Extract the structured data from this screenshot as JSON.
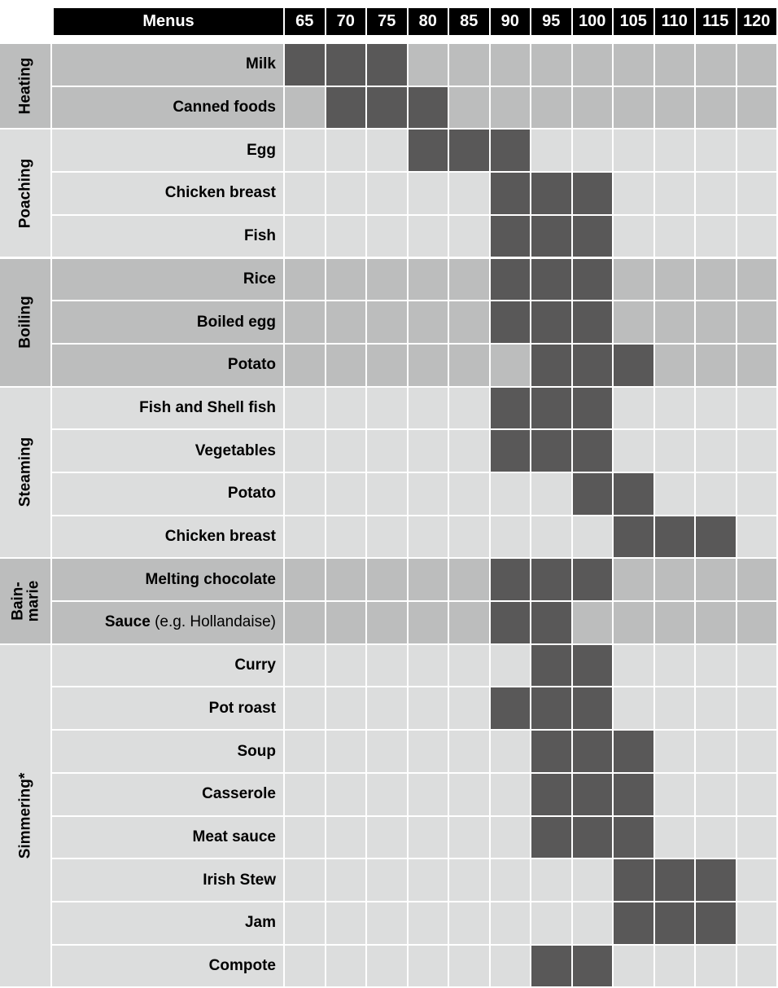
{
  "chart_data": {
    "type": "table",
    "menus_label": "Menus",
    "temperatures": [
      "65",
      "70",
      "75",
      "80",
      "85",
      "90",
      "95",
      "100",
      "105",
      "110",
      "115",
      "120"
    ],
    "groups": [
      {
        "name": "Heating",
        "rows": [
          {
            "menu": "Milk",
            "menu_note": "",
            "active": [
              65,
              70,
              75
            ]
          },
          {
            "menu": "Canned foods",
            "menu_note": "",
            "active": [
              70,
              75,
              80
            ]
          }
        ]
      },
      {
        "name": "Poaching",
        "rows": [
          {
            "menu": "Egg",
            "menu_note": "",
            "active": [
              80,
              85,
              90
            ]
          },
          {
            "menu": "Chicken breast",
            "menu_note": "",
            "active": [
              90,
              95,
              100
            ]
          },
          {
            "menu": "Fish",
            "menu_note": "",
            "active": [
              90,
              95,
              100
            ]
          }
        ]
      },
      {
        "name": "Boiling",
        "rows": [
          {
            "menu": "Rice",
            "menu_note": "",
            "active": [
              90,
              95,
              100
            ]
          },
          {
            "menu": "Boiled egg",
            "menu_note": "",
            "active": [
              90,
              95,
              100
            ]
          },
          {
            "menu": "Potato",
            "menu_note": "",
            "active": [
              95,
              100,
              105
            ]
          }
        ]
      },
      {
        "name": "Steaming",
        "rows": [
          {
            "menu": "Fish and Shell fish",
            "menu_note": "",
            "active": [
              90,
              95,
              100
            ]
          },
          {
            "menu": "Vegetables",
            "menu_note": "",
            "active": [
              90,
              95,
              100
            ]
          },
          {
            "menu": "Potato",
            "menu_note": "",
            "active": [
              100,
              105
            ]
          },
          {
            "menu": "Chicken breast",
            "menu_note": "",
            "active": [
              105,
              110,
              115
            ]
          }
        ]
      },
      {
        "name": "Bain-marie",
        "name_lines": [
          "Bain-",
          "marie"
        ],
        "rows": [
          {
            "menu": "Melting chocolate",
            "menu_note": "",
            "active": [
              90,
              95,
              100
            ]
          },
          {
            "menu": "Sauce",
            "menu_note": " (e.g. Hollandaise)",
            "active": [
              90,
              95
            ]
          }
        ]
      },
      {
        "name": "Simmering*",
        "rows": [
          {
            "menu": "Curry",
            "menu_note": "",
            "active": [
              95,
              100
            ]
          },
          {
            "menu": "Pot roast",
            "menu_note": "",
            "active": [
              90,
              95,
              100
            ]
          },
          {
            "menu": "Soup",
            "menu_note": "",
            "active": [
              95,
              100,
              105
            ]
          },
          {
            "menu": "Casserole",
            "menu_note": "",
            "active": [
              95,
              100,
              105
            ]
          },
          {
            "menu": "Meat sauce",
            "menu_note": "",
            "active": [
              95,
              100,
              105
            ]
          },
          {
            "menu": "Irish Stew",
            "menu_note": "",
            "active": [
              105,
              110,
              115
            ]
          },
          {
            "menu": "Jam",
            "menu_note": "",
            "active": [
              105,
              110,
              115
            ]
          },
          {
            "menu": "Compote",
            "menu_note": "",
            "active": [
              95,
              100
            ]
          }
        ]
      }
    ],
    "colors": {
      "header_bg": "#000000",
      "header_text": "#ffffff",
      "active_cell": "#595858",
      "group_dark": "#bcbdbd",
      "group_light": "#dcdddd",
      "grid_line": "#ffffff"
    }
  }
}
